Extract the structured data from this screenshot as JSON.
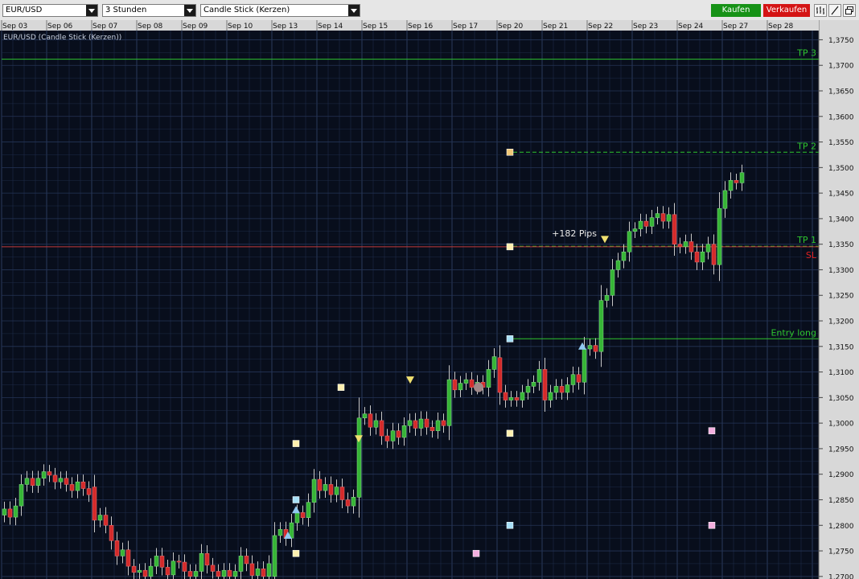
{
  "toolbar": {
    "symbol": "EUR/USD",
    "timeframe": "3 Stunden",
    "chart_type": "Candle Stick (Kerzen)",
    "buy_label": "Kaufen",
    "sell_label": "Verkaufen",
    "buy_color": "#169216",
    "sell_color": "#d41414",
    "tool_icons": [
      "bar-chart-icon",
      "line-draw-icon",
      "window-icon"
    ]
  },
  "colors": {
    "background": "#080e1c",
    "grid": "#1e2c48",
    "bull": "#36b536",
    "bear": "#d42a2a",
    "level_line": "#2ec42e",
    "sl_line": "#c23a3a",
    "axis_text": "#101010"
  },
  "chart_data": {
    "type": "candlestick",
    "title": "EUR/USD (Candle Stick (Kerzen))",
    "x_ticks": [
      "Sep 03",
      "Sep 06",
      "Sep 07",
      "Sep 08",
      "Sep 09",
      "Sep 10",
      "Sep 13",
      "Sep 14",
      "Sep 15",
      "Sep 16",
      "Sep 17",
      "Sep 20",
      "Sep 21",
      "Sep 22",
      "Sep 23",
      "Sep 24",
      "Sep 27",
      "Sep 28"
    ],
    "y_ticks": [
      "1,3750",
      "1,3700",
      "1,3650",
      "1,3600",
      "1,3550",
      "1,3500",
      "1,3450",
      "1,3400",
      "1,3350",
      "1,3300",
      "1,3250",
      "1,3200",
      "1,3150",
      "1,3100",
      "1,3050",
      "1,3000",
      "1,2950",
      "1,2900",
      "1,2850",
      "1,2800",
      "1,2750",
      "1,2700"
    ],
    "ylim": [
      1.2695,
      1.3768
    ],
    "days": [
      {
        "label": "Sep 03",
        "candles": [
          [
            1.282,
            1.2832
          ],
          [
            1.2832,
            1.2816
          ],
          [
            1.2816,
            1.2838
          ],
          [
            1.2838,
            1.288
          ],
          [
            1.288,
            1.2892
          ],
          [
            1.2892,
            1.2878
          ],
          [
            1.2878,
            1.2892
          ],
          [
            1.2892,
            1.2905
          ]
        ]
      },
      {
        "label": "Sep 06",
        "candles": [
          [
            1.2905,
            1.2898
          ],
          [
            1.2898,
            1.2885
          ],
          [
            1.2885,
            1.2892
          ],
          [
            1.2892,
            1.288
          ],
          [
            1.288,
            1.2868
          ],
          [
            1.2868,
            1.2885
          ],
          [
            1.2885,
            1.2872
          ],
          [
            1.2872,
            1.286
          ]
        ]
      },
      {
        "label": "Sep 07",
        "candles": [
          [
            1.2875,
            1.281
          ],
          [
            1.281,
            1.282
          ],
          [
            1.282,
            1.28
          ],
          [
            1.28,
            1.277
          ],
          [
            1.277,
            1.274
          ],
          [
            1.274,
            1.2752
          ],
          [
            1.2752,
            1.272
          ],
          [
            1.272,
            1.2708
          ]
        ]
      },
      {
        "label": "Sep 08",
        "candles": [
          [
            1.2708,
            1.2712
          ],
          [
            1.2712,
            1.27
          ],
          [
            1.27,
            1.272
          ],
          [
            1.272,
            1.274
          ],
          [
            1.274,
            1.2718
          ],
          [
            1.2718,
            1.2703
          ],
          [
            1.2703,
            1.273
          ],
          [
            1.273,
            1.2728
          ]
        ]
      },
      {
        "label": "Sep 09",
        "candles": [
          [
            1.2728,
            1.271
          ],
          [
            1.271,
            1.27
          ],
          [
            1.27,
            1.271
          ],
          [
            1.271,
            1.2745
          ],
          [
            1.2745,
            1.2722
          ],
          [
            1.2722,
            1.271
          ],
          [
            1.271,
            1.27
          ],
          [
            1.27,
            1.2712
          ]
        ]
      },
      {
        "label": "Sep 10",
        "candles": [
          [
            1.2712,
            1.27
          ],
          [
            1.27,
            1.271
          ],
          [
            1.271,
            1.274
          ],
          [
            1.274,
            1.2725
          ],
          [
            1.2725,
            1.2702
          ],
          [
            1.2702,
            1.2715
          ],
          [
            1.2715,
            1.27
          ],
          [
            1.27,
            1.2725
          ]
        ]
      },
      {
        "label": "Sep 13",
        "candles": [
          [
            1.27,
            1.278
          ],
          [
            1.278,
            1.2792
          ],
          [
            1.2792,
            1.2775
          ],
          [
            1.2775,
            1.2805
          ],
          [
            1.2805,
            1.2825
          ],
          [
            1.2825,
            1.2815
          ],
          [
            1.2815,
            1.2845
          ],
          [
            1.2845,
            1.289
          ]
        ]
      },
      {
        "label": "Sep 14",
        "candles": [
          [
            1.289,
            1.2868
          ],
          [
            1.2868,
            1.288
          ],
          [
            1.288,
            1.286
          ],
          [
            1.286,
            1.2875
          ],
          [
            1.2875,
            1.285
          ],
          [
            1.285,
            1.2838
          ],
          [
            1.2838,
            1.2855
          ],
          [
            1.2855,
            1.301
          ]
        ]
      },
      {
        "label": "Sep 15",
        "candles": [
          [
            1.301,
            1.3018
          ],
          [
            1.3018,
            1.2992
          ],
          [
            1.2992,
            1.3005
          ],
          [
            1.3005,
            1.2975
          ],
          [
            1.2975,
            1.2965
          ],
          [
            1.2965,
            1.2985
          ],
          [
            1.2985,
            1.2972
          ],
          [
            1.2972,
            1.2995
          ]
        ]
      },
      {
        "label": "Sep 16",
        "candles": [
          [
            1.2995,
            1.3005
          ],
          [
            1.3005,
            1.299
          ],
          [
            1.299,
            1.3008
          ],
          [
            1.3008,
            1.2992
          ],
          [
            1.2992,
            1.2985
          ],
          [
            1.2985,
            1.3005
          ],
          [
            1.3005,
            1.2995
          ],
          [
            1.2995,
            1.3085
          ]
        ]
      },
      {
        "label": "Sep 17",
        "candles": [
          [
            1.3085,
            1.3065
          ],
          [
            1.3065,
            1.3078
          ],
          [
            1.3078,
            1.3085
          ],
          [
            1.3085,
            1.307
          ],
          [
            1.307,
            1.308
          ],
          [
            1.308,
            1.307
          ],
          [
            1.307,
            1.3105
          ],
          [
            1.3105,
            1.313
          ]
        ]
      },
      {
        "label": "Sep 20",
        "candles": [
          [
            1.3128,
            1.306
          ],
          [
            1.306,
            1.3045
          ],
          [
            1.3045,
            1.305
          ],
          [
            1.305,
            1.3045
          ],
          [
            1.3045,
            1.306
          ],
          [
            1.306,
            1.3072
          ],
          [
            1.3072,
            1.308
          ],
          [
            1.308,
            1.3105
          ]
        ]
      },
      {
        "label": "Sep 21",
        "candles": [
          [
            1.3105,
            1.3045
          ],
          [
            1.3045,
            1.306
          ],
          [
            1.306,
            1.3072
          ],
          [
            1.3072,
            1.306
          ],
          [
            1.306,
            1.3075
          ],
          [
            1.3075,
            1.3095
          ],
          [
            1.3095,
            1.308
          ],
          [
            1.308,
            1.3145
          ]
        ]
      },
      {
        "label": "Sep 22",
        "candles": [
          [
            1.3145,
            1.3152
          ],
          [
            1.3152,
            1.314
          ],
          [
            1.314,
            1.324
          ],
          [
            1.324,
            1.325
          ],
          [
            1.325,
            1.33
          ],
          [
            1.33,
            1.3318
          ],
          [
            1.3318,
            1.3335
          ],
          [
            1.3335,
            1.3375
          ]
        ]
      },
      {
        "label": "Sep 23",
        "candles": [
          [
            1.3375,
            1.338
          ],
          [
            1.338,
            1.3395
          ],
          [
            1.3395,
            1.3385
          ],
          [
            1.3385,
            1.3402
          ],
          [
            1.3402,
            1.341
          ],
          [
            1.341,
            1.3395
          ],
          [
            1.3395,
            1.3408
          ],
          [
            1.3408,
            1.335
          ]
        ]
      },
      {
        "label": "Sep 24",
        "candles": [
          [
            1.335,
            1.3345
          ],
          [
            1.3345,
            1.3355
          ],
          [
            1.3355,
            1.3335
          ],
          [
            1.3335,
            1.3315
          ],
          [
            1.3315,
            1.3335
          ],
          [
            1.3335,
            1.335
          ],
          [
            1.335,
            1.331
          ],
          [
            1.331,
            1.342
          ]
        ]
      },
      {
        "label": "Sep 27",
        "candles": [
          [
            1.342,
            1.3455
          ],
          [
            1.3455,
            1.3475
          ],
          [
            1.3475,
            1.347
          ],
          [
            1.347,
            1.349
          ]
        ]
      }
    ],
    "levels": [
      {
        "label": "TP 3",
        "value": 1.3712,
        "style": "solid",
        "color": "#2ec42e"
      },
      {
        "label": "TP 2",
        "value": 1.353,
        "style": "dashed",
        "color": "#2ec42e"
      },
      {
        "label": "TP 1",
        "value": 1.3346,
        "style": "dashed",
        "color": "#2ec42e"
      },
      {
        "label": "SL",
        "value": 1.3345,
        "style": "solid",
        "color": "#c23a3a",
        "text_color": "#e02020"
      },
      {
        "label": "Entry long",
        "value": 1.3165,
        "style": "solid",
        "color": "#2ec42e"
      }
    ],
    "annotations": [
      {
        "text": "+182 Pips",
        "x": "Sep 22",
        "y": 1.337
      }
    ],
    "markers": [
      {
        "type": "square",
        "color": "#f0c878",
        "x": "Sep 20",
        "y": 1.353
      },
      {
        "type": "square",
        "color": "#fff0b0",
        "x": "Sep 20",
        "y": 1.3345
      },
      {
        "type": "square",
        "color": "#a8e0f8",
        "x": "Sep 20",
        "y": 1.3165
      },
      {
        "type": "square",
        "color": "#fff0b0",
        "x": "Sep 20",
        "y": 1.298
      },
      {
        "type": "square",
        "color": "#a8e0f8",
        "x": "Sep 20",
        "y": 1.28
      },
      {
        "type": "square",
        "color": "#fff0b0",
        "x": "Sep 14",
        "y": 1.307
      },
      {
        "type": "square",
        "color": "#fff0b0",
        "x": "Sep 13",
        "y": 1.296
      },
      {
        "type": "square",
        "color": "#a8e0f8",
        "x": "Sep 13",
        "y": 1.285
      },
      {
        "type": "square",
        "color": "#fff0b0",
        "x": "Sep 13",
        "y": 1.2745
      },
      {
        "type": "square",
        "color": "#f4b0e0",
        "x": "Sep 17",
        "y": 1.2745
      },
      {
        "type": "square",
        "color": "#f4b0e0",
        "x": "Sep 24",
        "y": 1.2985
      },
      {
        "type": "square",
        "color": "#f4b0e0",
        "x": "Sep 24",
        "y": 1.28
      },
      {
        "type": "triangle-up",
        "color": "#90c8f0",
        "x": "Sep 13",
        "y": 1.278
      },
      {
        "type": "triangle-up",
        "color": "#90c8f0",
        "x": "Sep 13",
        "y": 1.283
      },
      {
        "type": "triangle-up",
        "color": "#90c8f0",
        "x": "Sep 21",
        "y": 1.315
      },
      {
        "type": "triangle-down",
        "color": "#f0e070",
        "x": "Sep 14",
        "y": 1.297
      },
      {
        "type": "triangle-down",
        "color": "#f0e070",
        "x": "Sep 16",
        "y": 1.3085
      },
      {
        "type": "triangle-down",
        "color": "#f0e070",
        "x": "Sep 22",
        "y": 1.336
      },
      {
        "type": "circle",
        "color": "#a08888",
        "x": "Sep 17",
        "y": 1.307
      }
    ]
  }
}
